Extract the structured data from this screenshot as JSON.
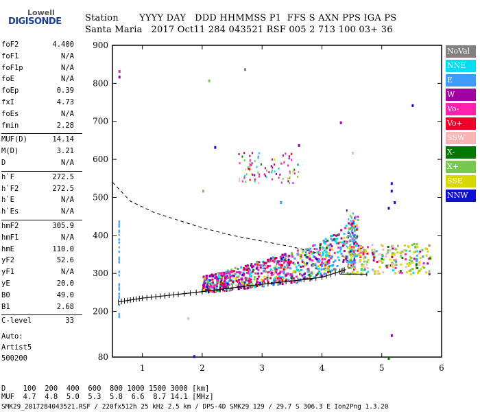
{
  "logo": {
    "line1": "Lowell",
    "line2": "DIGISONDE"
  },
  "header": {
    "row1": "Station       YYYY DAY   DDD HHMMSS P1  FFS S AXN PPS IGA PS",
    "row2": "Santa Maria   2017 Oct11 284 043521 RSF 005 2 713 100 03+ 36"
  },
  "params": [
    {
      "name": "foF2",
      "value": "4.400"
    },
    {
      "name": "foF1",
      "value": "N/A"
    },
    {
      "name": "foF1p",
      "value": "N/A"
    },
    {
      "name": "foE",
      "value": "N/A"
    },
    {
      "name": "foEp",
      "value": "0.39"
    },
    {
      "name": "fxI",
      "value": "4.73"
    },
    {
      "name": "foEs",
      "value": "N/A"
    },
    {
      "name": "fmin",
      "value": "2.28"
    },
    {
      "name": "MUF(D)",
      "value": "14.14"
    },
    {
      "name": "M(D)",
      "value": "3.21"
    },
    {
      "name": "D",
      "value": "N/A"
    },
    {
      "name": "h`F",
      "value": "272.5"
    },
    {
      "name": "h`F2",
      "value": "272.5"
    },
    {
      "name": "h`E",
      "value": "N/A"
    },
    {
      "name": "h`Es",
      "value": "N/A"
    },
    {
      "name": "hmF2",
      "value": "305.9"
    },
    {
      "name": "hmF1",
      "value": "N/A"
    },
    {
      "name": "hmE",
      "value": "110.0"
    },
    {
      "name": "yF2",
      "value": "52.6"
    },
    {
      "name": "yF1",
      "value": "N/A"
    },
    {
      "name": "yE",
      "value": "20.0"
    },
    {
      "name": "B0",
      "value": "49.0"
    },
    {
      "name": "B1",
      "value": "2.68"
    },
    {
      "name": "C-level",
      "value": "33"
    }
  ],
  "auto_info": {
    "line1": "Auto:",
    "line2": "Artist5",
    "line3": "500200"
  },
  "legend": [
    {
      "label": "NoVal",
      "color": "#808080"
    },
    {
      "label": "NNE",
      "color": "#00dcf0"
    },
    {
      "label": "E",
      "color": "#3c9cff"
    },
    {
      "label": "W",
      "color": "#a000a0"
    },
    {
      "label": "Vo-",
      "color": "#ff20b0"
    },
    {
      "label": "Vo+",
      "color": "#f00028"
    },
    {
      "label": "SSW",
      "color": "#f8b4b4"
    },
    {
      "label": "X-",
      "color": "#007800"
    },
    {
      "label": "X+",
      "color": "#78c850"
    },
    {
      "label": "SSE",
      "color": "#d8d800"
    },
    {
      "label": "NNW",
      "color": "#1010d0"
    }
  ],
  "footer": {
    "d_row": "D    100  200  400  600  800 1000 1500 3000 [km]",
    "muf_row": "MUF  4.7  4.8  5.0  5.3  5.8  6.6  8.7 14.1 [MHz]",
    "info": "SMK29_2017284043521.RSF / 220fx512h 25 kHz 2.5 km / DPS-4D SMK29 129 / 29.7 S 306.3 E Ion2Png 1.3.20"
  },
  "chart_data": {
    "type": "scatter",
    "xlim": [
      0.5,
      6
    ],
    "ylim": [
      80,
      900
    ],
    "xticks": [
      "1",
      "2",
      "3",
      "4",
      "5",
      "6"
    ],
    "yticks": [
      "900",
      "800",
      "700",
      "600",
      "500",
      "400",
      "300",
      "200",
      "80"
    ],
    "xlabel": "",
    "ylabel": "",
    "profile_dashed": {
      "x": [
        0.5,
        0.8,
        1.2,
        1.6,
        2.0,
        2.5,
        3.0,
        3.5,
        3.9
      ],
      "y": [
        540,
        490,
        460,
        440,
        420,
        400,
        385,
        370,
        355
      ]
    },
    "trace": {
      "x": [
        0.6,
        0.8,
        1.0,
        1.3,
        1.6,
        2.0,
        2.4,
        2.8,
        3.2,
        3.6,
        4.0,
        4.3,
        4.4
      ],
      "y": [
        225,
        230,
        235,
        240,
        245,
        252,
        260,
        268,
        275,
        282,
        290,
        305,
        310
      ]
    }
  }
}
